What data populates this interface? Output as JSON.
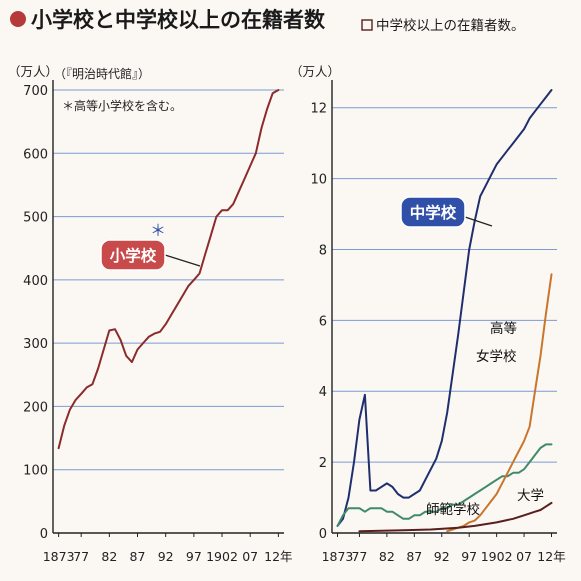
{
  "header": {
    "title_left": "小学校と中学校以上の在籍者数",
    "title_right": "中学校以上の在籍者数。"
  },
  "chart_data": [
    {
      "type": "line",
      "ylabel": "（万人）",
      "ylim": [
        0,
        700
      ],
      "y_ticks": [
        "0",
        "100",
        "200",
        "300",
        "400",
        "500",
        "600",
        "700"
      ],
      "x_tick_labels": [
        "1873",
        "77",
        "82",
        "87",
        "92",
        "97",
        "1902",
        "07",
        "12年"
      ],
      "x_tick_years": [
        1873,
        1877,
        1882,
        1887,
        1892,
        1897,
        1902,
        1907,
        1912
      ],
      "xlim": [
        1872,
        1913
      ],
      "grid": true,
      "source": "（『明治時代館』）",
      "annotation": "＊高等小学校を含む。",
      "marker_symbol": "＊",
      "series": [
        {
          "name": "小学校",
          "color": "#8b2b2b",
          "label_bg": "#c94a4a",
          "x": [
            1873,
            1874,
            1875,
            1876,
            1877,
            1878,
            1879,
            1880,
            1881,
            1882,
            1883,
            1884,
            1885,
            1886,
            1887,
            1888,
            1889,
            1890,
            1891,
            1892,
            1893,
            1894,
            1895,
            1896,
            1897,
            1898,
            1899,
            1900,
            1901,
            1902,
            1903,
            1904,
            1905,
            1906,
            1907,
            1908,
            1909,
            1910,
            1911,
            1912
          ],
          "values": [
            134,
            170,
            195,
            210,
            220,
            230,
            235,
            260,
            290,
            320,
            322,
            305,
            280,
            270,
            290,
            300,
            310,
            315,
            318,
            330,
            345,
            360,
            375,
            390,
            400,
            410,
            440,
            470,
            500,
            510,
            510,
            520,
            540,
            560,
            580,
            600,
            640,
            670,
            695,
            700
          ]
        }
      ]
    },
    {
      "type": "line",
      "ylabel": "（万人）",
      "ylim": [
        0,
        12.5
      ],
      "y_ticks": [
        "0",
        "2",
        "4",
        "6",
        "8",
        "10",
        "12"
      ],
      "x_tick_labels": [
        "1873",
        "77",
        "82",
        "87",
        "92",
        "97",
        "1902",
        "07",
        "12年"
      ],
      "x_tick_years": [
        1873,
        1877,
        1882,
        1887,
        1892,
        1897,
        1902,
        1907,
        1912
      ],
      "xlim": [
        1872,
        1913
      ],
      "grid": true,
      "series": [
        {
          "name": "中学校",
          "color": "#1f2f6e",
          "label_bg": "#2f4fa8",
          "x": [
            1873,
            1874,
            1875,
            1876,
            1877,
            1878,
            1879,
            1880,
            1881,
            1882,
            1883,
            1884,
            1885,
            1886,
            1887,
            1888,
            1889,
            1890,
            1891,
            1892,
            1893,
            1894,
            1895,
            1896,
            1897,
            1898,
            1899,
            1900,
            1901,
            1902,
            1903,
            1904,
            1905,
            1906,
            1907,
            1908,
            1909,
            1910,
            1911,
            1912
          ],
          "values": [
            0.2,
            0.4,
            1.0,
            2.0,
            3.2,
            3.9,
            1.2,
            1.2,
            1.3,
            1.4,
            1.3,
            1.1,
            1.0,
            1.0,
            1.1,
            1.2,
            1.5,
            1.8,
            2.1,
            2.6,
            3.4,
            4.5,
            5.6,
            6.8,
            8.0,
            8.8,
            9.5,
            9.8,
            10.1,
            10.4,
            10.6,
            10.8,
            11.0,
            11.2,
            11.4,
            11.7,
            11.9,
            12.1,
            12.3,
            12.5
          ]
        },
        {
          "name": "師範学校",
          "color": "#3f8a6a",
          "x": [
            1873,
            1874,
            1875,
            1876,
            1877,
            1878,
            1879,
            1880,
            1881,
            1882,
            1883,
            1884,
            1885,
            1886,
            1887,
            1888,
            1889,
            1890,
            1891,
            1892,
            1893,
            1894,
            1895,
            1896,
            1897,
            1898,
            1899,
            1900,
            1901,
            1902,
            1903,
            1904,
            1905,
            1906,
            1907,
            1908,
            1909,
            1910,
            1911,
            1912
          ],
          "values": [
            0.2,
            0.5,
            0.7,
            0.7,
            0.7,
            0.6,
            0.7,
            0.7,
            0.7,
            0.6,
            0.6,
            0.5,
            0.4,
            0.4,
            0.5,
            0.5,
            0.6,
            0.6,
            0.6,
            0.7,
            0.7,
            0.8,
            0.8,
            0.9,
            1.0,
            1.1,
            1.2,
            1.3,
            1.4,
            1.5,
            1.6,
            1.6,
            1.7,
            1.7,
            1.8,
            2.0,
            2.2,
            2.4,
            2.5,
            2.5
          ]
        },
        {
          "name": "高等\n女学校",
          "color": "#c8762d",
          "x": [
            1893,
            1894,
            1895,
            1896,
            1897,
            1898,
            1899,
            1900,
            1901,
            1902,
            1903,
            1904,
            1905,
            1906,
            1907,
            1908,
            1909,
            1910,
            1911,
            1912
          ],
          "values": [
            0.05,
            0.1,
            0.15,
            0.2,
            0.3,
            0.35,
            0.5,
            0.7,
            0.9,
            1.1,
            1.4,
            1.7,
            2.0,
            2.3,
            2.6,
            3.0,
            4.0,
            5.0,
            6.2,
            7.3
          ]
        },
        {
          "name": "大学",
          "color": "#5a1e1e",
          "x": [
            1877,
            1880,
            1885,
            1890,
            1895,
            1898,
            1900,
            1902,
            1905,
            1907,
            1909,
            1910,
            1911,
            1912
          ],
          "values": [
            0.05,
            0.06,
            0.08,
            0.1,
            0.15,
            0.2,
            0.25,
            0.3,
            0.4,
            0.5,
            0.6,
            0.65,
            0.75,
            0.85
          ]
        }
      ]
    }
  ]
}
